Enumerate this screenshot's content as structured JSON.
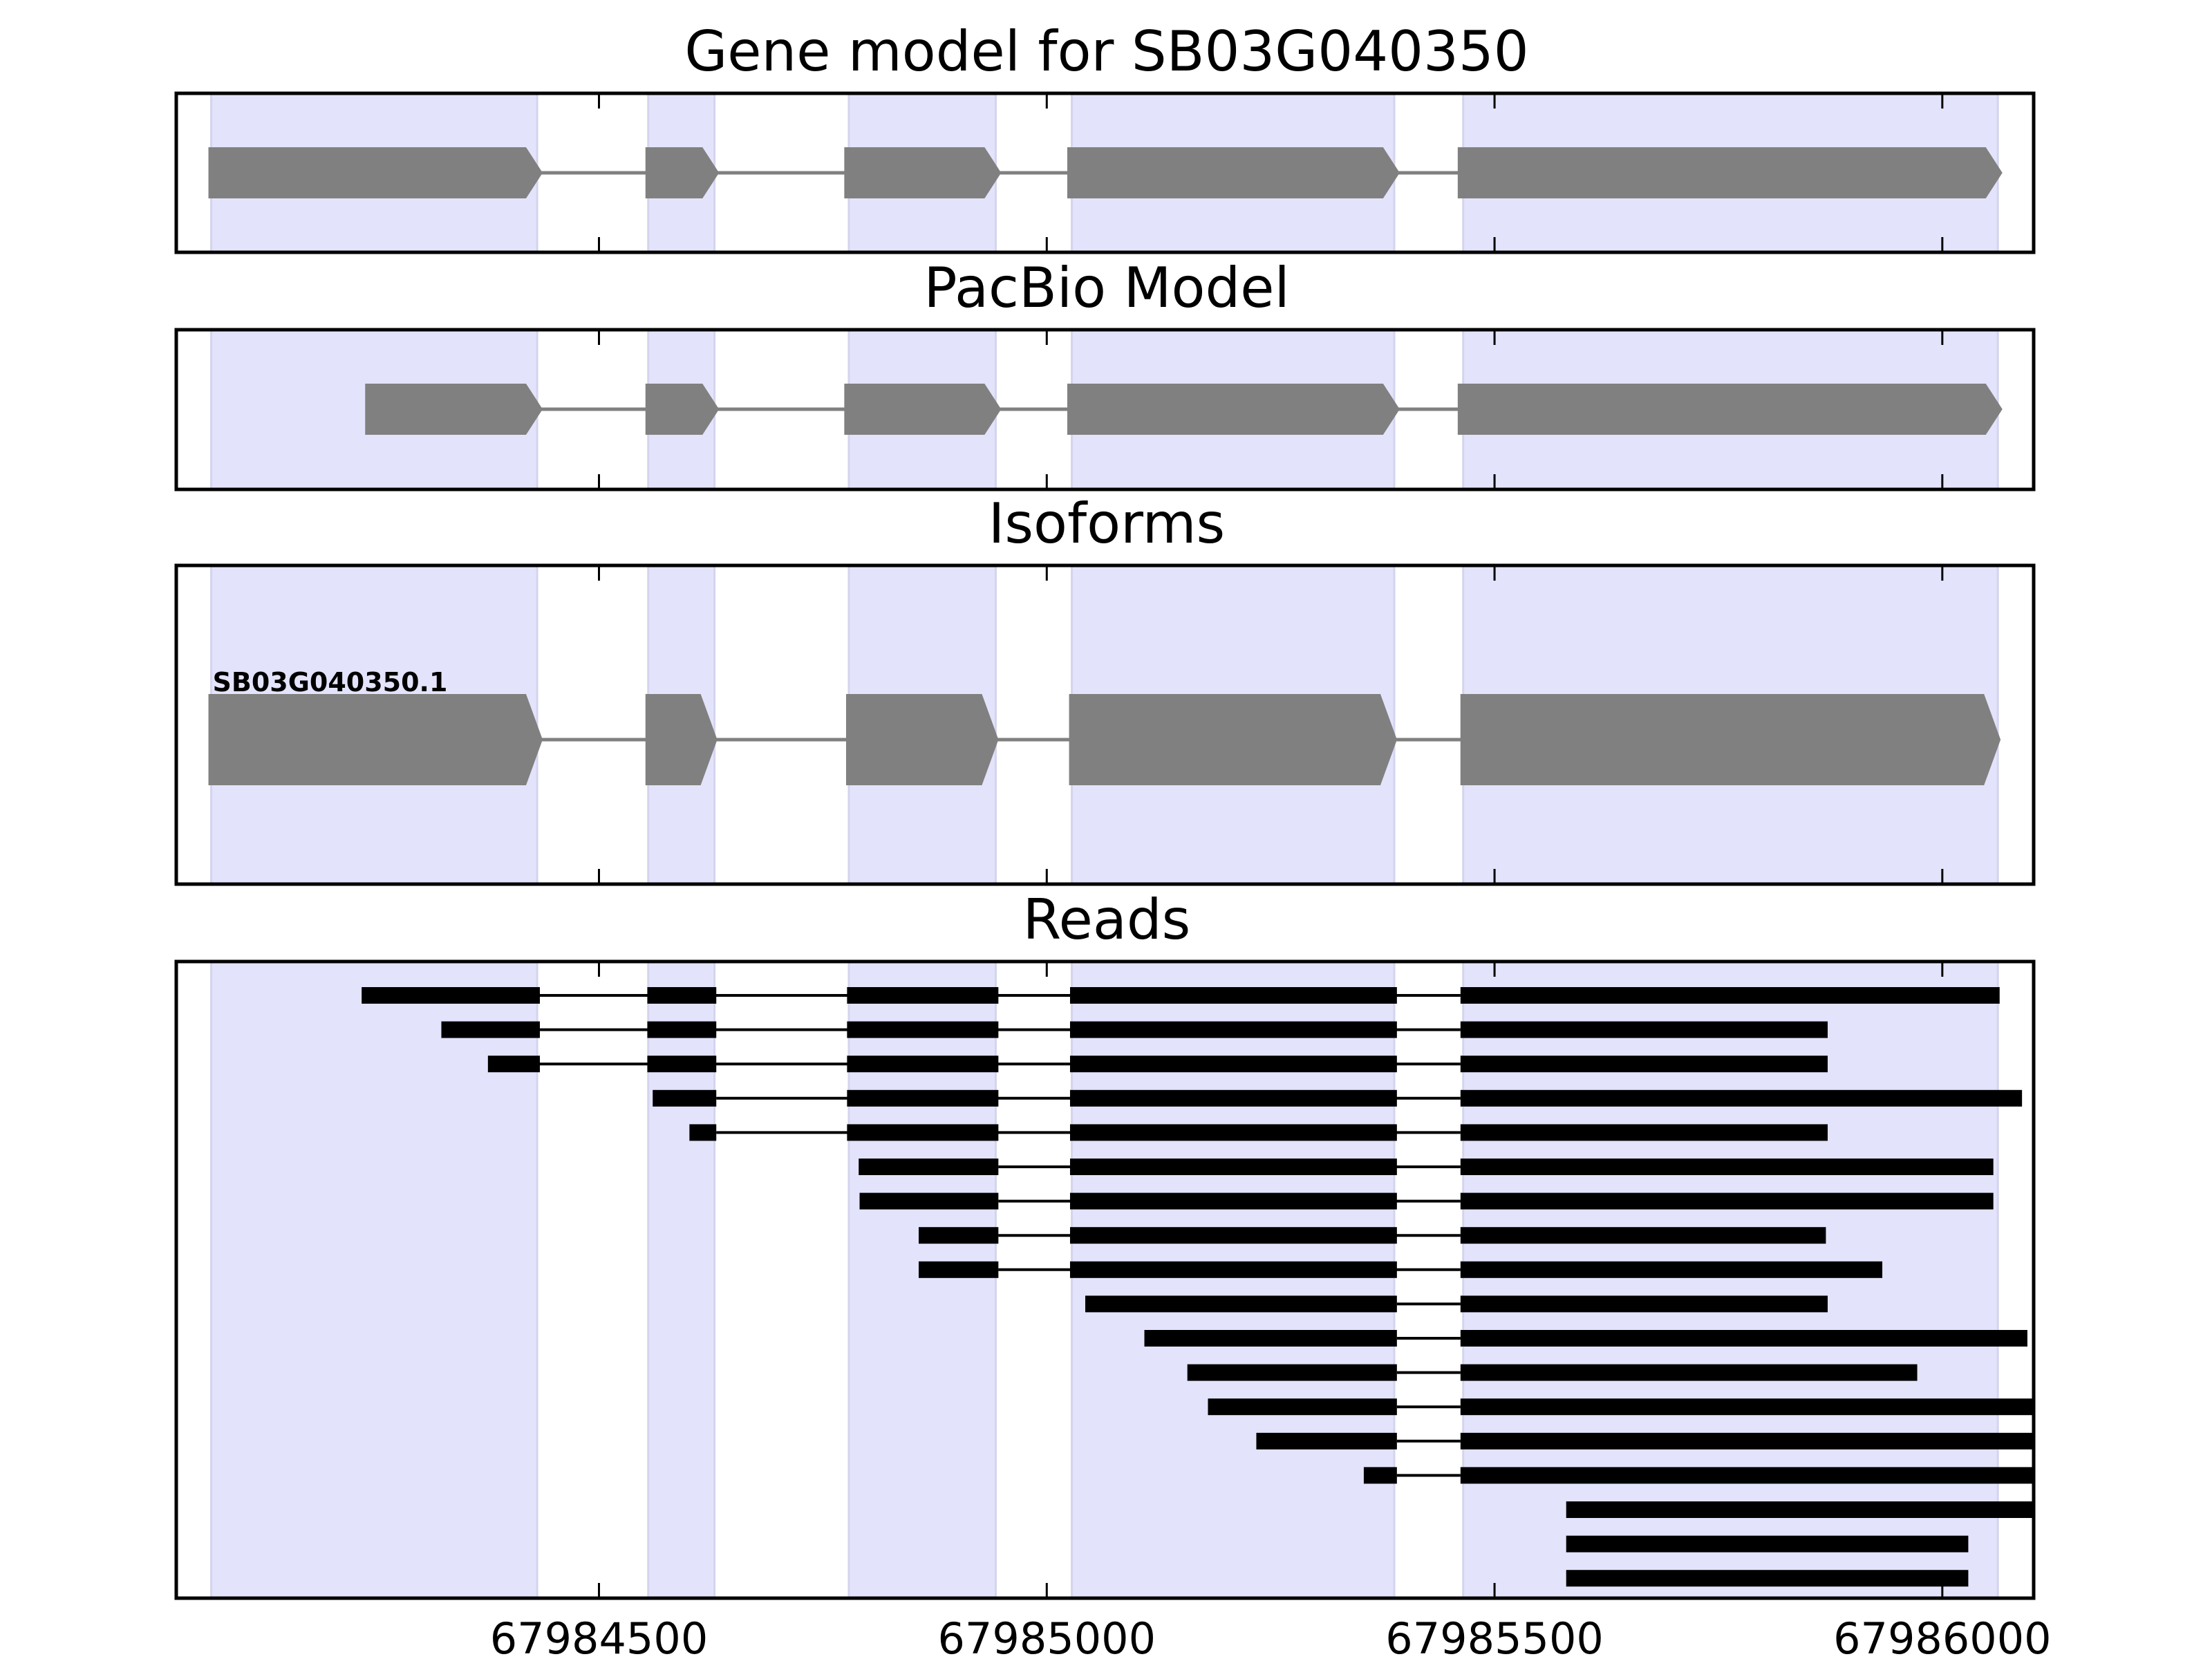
{
  "chart_data": {
    "type": "gene-track",
    "xlim": [
      67984028,
      67986102
    ],
    "xticks": [
      67984500,
      67985000,
      67985500,
      67986000
    ],
    "xtick_labels": [
      "67984500",
      "67985000",
      "67985500",
      "67986000"
    ],
    "exon_shading": [
      [
        67984067,
        67984431
      ],
      [
        67984555,
        67984629
      ],
      [
        67984779,
        67984943
      ],
      [
        67985028,
        67985388
      ],
      [
        67985465,
        67986062
      ]
    ],
    "shade_color": "#e3e3fc",
    "exon_color": "#808080",
    "read_color": "#000000",
    "panels": {
      "gene_model": {
        "title": "Gene model for SB03G040350",
        "exons": [
          [
            67984067,
            67984434
          ],
          [
            67984555,
            67984631
          ],
          [
            67984777,
            67984946
          ],
          [
            67985026,
            67985391
          ],
          [
            67985462,
            67986064
          ]
        ]
      },
      "pacbio": {
        "title": "PacBio Model",
        "exons": [
          [
            67984242,
            67984434
          ],
          [
            67984555,
            67984631
          ],
          [
            67984777,
            67984946
          ],
          [
            67985026,
            67985391
          ],
          [
            67985462,
            67986064
          ]
        ]
      },
      "isoforms": {
        "title": "Isoforms",
        "items": [
          {
            "name": "SB03G040350.1",
            "exons": [
              [
                67984067,
                67984434
              ],
              [
                67984555,
                67984629
              ],
              [
                67984779,
                67984943
              ],
              [
                67985028,
                67985388
              ],
              [
                67985465,
                67986062
              ]
            ]
          }
        ]
      },
      "reads": {
        "title": "Reads",
        "read_exons": [
          [
            67984000,
            67984434
          ],
          [
            67984554,
            67984631
          ],
          [
            67984777,
            67984946
          ],
          [
            67985026,
            67985391
          ],
          [
            67985462,
            67986200
          ]
        ],
        "items": [
          {
            "start": 67984235,
            "end": 67986064
          },
          {
            "start": 67984324,
            "end": 67985872
          },
          {
            "start": 67984376,
            "end": 67985872
          },
          {
            "start": 67984560,
            "end": 67986089
          },
          {
            "start": 67984601,
            "end": 67985872
          },
          {
            "start": 67984790,
            "end": 67986057
          },
          {
            "start": 67984791,
            "end": 67986057
          },
          {
            "start": 67984857,
            "end": 67985870
          },
          {
            "start": 67984857,
            "end": 67985933
          },
          {
            "start": 67985043,
            "end": 67985872
          },
          {
            "start": 67985109,
            "end": 67986095
          },
          {
            "start": 67985157,
            "end": 67985972
          },
          {
            "start": 67985180,
            "end": 67986102
          },
          {
            "start": 67985234,
            "end": 67986102
          },
          {
            "start": 67985354,
            "end": 67986102
          },
          {
            "start": 67985580,
            "end": 67986102
          },
          {
            "start": 67985580,
            "end": 67986029
          },
          {
            "start": 67985580,
            "end": 67986029
          }
        ]
      }
    }
  }
}
